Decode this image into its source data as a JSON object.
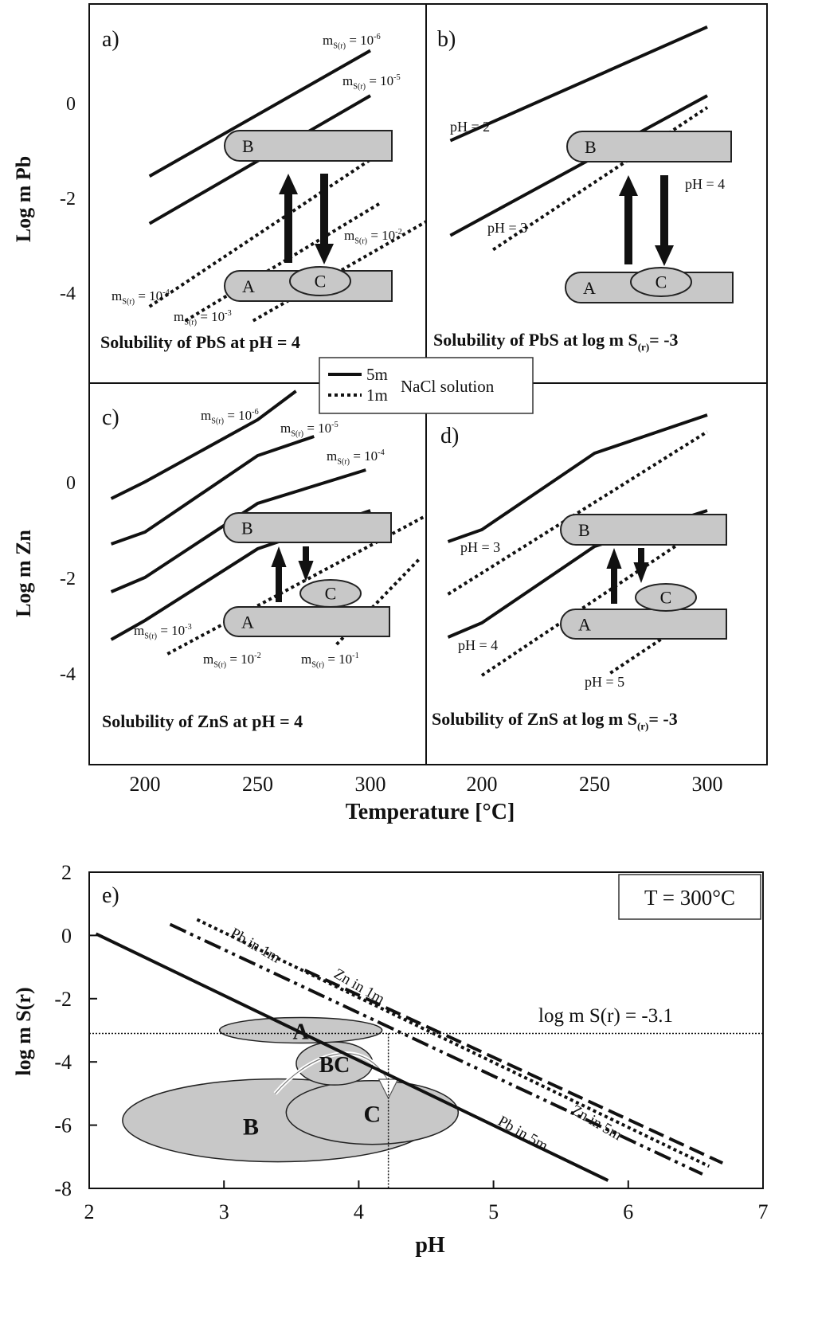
{
  "chart_data": [
    {
      "panel": "a)",
      "type": "line",
      "title": "Solubility of PbS at pH = 4",
      "ylabel": "Log m Pb",
      "xlim": [
        175,
        325
      ],
      "ylim": [
        -5.8,
        2
      ],
      "yticks": [
        "0",
        "-2",
        "-4"
      ],
      "series": [
        {
          "name": "m S(r) = 10-6",
          "style": "solid",
          "x": [
            202,
            300
          ],
          "y": [
            -1.55,
            1.1
          ]
        },
        {
          "name": "m S(r) = 10-5",
          "style": "solid",
          "x": [
            202,
            300
          ],
          "y": [
            -2.55,
            0.15
          ]
        },
        {
          "name": "m S(r) = 10-4",
          "style": "dotted",
          "x": [
            202,
            300
          ],
          "y": [
            -4.3,
            -1.2
          ]
        },
        {
          "name": "m S(r) = 10-3",
          "style": "dotted",
          "x": [
            218,
            305
          ],
          "y": [
            -4.6,
            -2.1
          ]
        },
        {
          "name": "m S(r) = 10-2",
          "style": "dotted",
          "x": [
            248,
            325
          ],
          "y": [
            -4.6,
            -2.5
          ]
        }
      ],
      "labels": [
        {
          "text": "m",
          "sub": "S(r)",
          "suffix": " = 10",
          "sup": "-6"
        },
        {
          "text": "m",
          "sub": "S(r)",
          "suffix": " = 10",
          "sup": "-5"
        },
        {
          "text": "m",
          "sub": "S(r)",
          "suffix": " = 10",
          "sup": "-4"
        },
        {
          "text": "m",
          "sub": "S(r)",
          "suffix": " = 10",
          "sup": "-3"
        },
        {
          "text": "m",
          "sub": "S(r)",
          "suffix": " = 10",
          "sup": "-2"
        }
      ]
    },
    {
      "panel": "b)",
      "type": "line",
      "title": "Solubility of PbS at log m S(r)= -3",
      "xlim": [
        175,
        325
      ],
      "ylim": [
        -5.8,
        2
      ],
      "series": [
        {
          "name": "pH = 2",
          "style": "solid",
          "x": [
            186,
            300
          ],
          "y": [
            -0.8,
            1.6
          ]
        },
        {
          "name": "pH = 3",
          "style": "solid",
          "x": [
            186,
            300
          ],
          "y": [
            -2.8,
            0.15
          ]
        },
        {
          "name": "pH = 4",
          "style": "dotted",
          "x": [
            205,
            300
          ],
          "y": [
            -3.1,
            -0.1
          ]
        }
      ],
      "labels": [
        "pH = 2",
        "pH = 3",
        "pH = 4"
      ]
    },
    {
      "panel": "c)",
      "type": "line",
      "title": "Solubility of ZnS at pH = 4",
      "ylabel": "Log m Zn",
      "xlim": [
        175,
        325
      ],
      "ylim": [
        -5.8,
        2
      ],
      "yticks": [
        "0",
        "-2",
        "-4"
      ],
      "series": [
        {
          "name": "m S(r) = 10-6",
          "style": "solid",
          "x": [
            185,
            200,
            250,
            267
          ],
          "y": [
            -0.35,
            0,
            1.3,
            1.9
          ]
        },
        {
          "name": "m S(r) = 10-5",
          "style": "solid",
          "x": [
            185,
            200,
            250,
            275
          ],
          "y": [
            -1.3,
            -1.05,
            0.55,
            0.95
          ]
        },
        {
          "name": "m S(r) = 10-4",
          "style": "solid",
          "x": [
            185,
            200,
            250,
            298
          ],
          "y": [
            -2.3,
            -2.0,
            -0.45,
            0.25
          ]
        },
        {
          "name": "m S(r) = 10-3",
          "style": "solid",
          "x": [
            185,
            200,
            250,
            300
          ],
          "y": [
            -3.3,
            -2.9,
            -1.4,
            -0.6
          ]
        },
        {
          "name": "m S(r) = 10-2",
          "style": "dotted",
          "x": [
            210,
            325
          ],
          "y": [
            -3.6,
            -0.7
          ]
        },
        {
          "name": "m S(r) = 10-1",
          "style": "dotted",
          "x": [
            285,
            322
          ],
          "y": [
            -3.4,
            -1.6
          ]
        }
      ],
      "labels": [
        {
          "text": "m",
          "sub": "S(r)",
          "suffix": " = 10",
          "sup": "-6"
        },
        {
          "text": "m",
          "sub": "S(r)",
          "suffix": " = 10",
          "sup": "-5"
        },
        {
          "text": "m",
          "sub": "S(r)",
          "suffix": " = 10",
          "sup": "-4"
        },
        {
          "text": "m",
          "sub": "S(r)",
          "suffix": " = 10",
          "sup": "-3"
        },
        {
          "text": "m",
          "sub": "S(r)",
          "suffix": " = 10",
          "sup": "-2"
        },
        {
          "text": "m",
          "sub": "S(r)",
          "suffix": " = 10",
          "sup": "-1"
        }
      ]
    },
    {
      "panel": "d)",
      "type": "line",
      "title": "Solubility of ZnS at log m S(r)= -3",
      "xlim": [
        175,
        325
      ],
      "ylim": [
        -5.8,
        2
      ],
      "series": [
        {
          "name": "pH = 3",
          "style": "solid",
          "x": [
            185,
            200,
            250,
            300
          ],
          "y": [
            -1.25,
            -1.0,
            0.6,
            1.4
          ]
        },
        {
          "name": "pH = 4",
          "style": "solid",
          "x": [
            185,
            200,
            250,
            300
          ],
          "y": [
            -3.25,
            -2.95,
            -1.35,
            -0.6
          ]
        },
        {
          "name": "pH = 3",
          "style": "dotted",
          "x": [
            185,
            300
          ],
          "y": [
            -2.35,
            1.05
          ]
        },
        {
          "name": "pH = 4",
          "style": "dotted",
          "x": [
            200,
            300
          ],
          "y": [
            -4.05,
            -0.9
          ]
        },
        {
          "name": "pH = 5",
          "style": "dotted",
          "x": [
            257,
            292
          ],
          "y": [
            -4.0,
            -2.9
          ]
        }
      ],
      "labels": [
        "pH = 3",
        "pH = 4",
        "pH = 5"
      ]
    },
    {
      "panel": "e)",
      "type": "line",
      "ylabel": "log m S(r)",
      "xlabel": "pH",
      "xlim": [
        2,
        7
      ],
      "ylim": [
        -8,
        2
      ],
      "xticks": [
        "2",
        "3",
        "4",
        "5",
        "6",
        "7"
      ],
      "yticks": [
        "2",
        "0",
        "-2",
        "-4",
        "-6",
        "-8"
      ],
      "reference_line": {
        "label": "log m S(r) = -3.1",
        "y": -3.1,
        "x_vertical": 4.22
      },
      "series": [
        {
          "name": "Pb in 5m",
          "style": "solid",
          "x": [
            2.05,
            5.85
          ],
          "y": [
            0.05,
            -7.75
          ]
        },
        {
          "name": "Zn in 5m",
          "style": "dash-dot-dot",
          "x": [
            2.6,
            6.55
          ],
          "y": [
            0.35,
            -7.55
          ]
        },
        {
          "name": "Pb in 1m",
          "style": "dotted",
          "x": [
            2.8,
            6.6
          ],
          "y": [
            0.5,
            -7.3
          ]
        },
        {
          "name": "Zn in 1m",
          "style": "dashed",
          "x": [
            3.6,
            6.7
          ],
          "y": [
            -1.1,
            -7.2
          ]
        }
      ],
      "labels": [
        "Pb in 1m",
        "Zn in 1m",
        "Pb in 5m",
        "Zn in 5m"
      ],
      "regions": [
        "A",
        "BC",
        "B",
        "C"
      ],
      "inset": "T = 300°C"
    }
  ],
  "shared": {
    "xlabel": "Temperature [°C]",
    "xticks": [
      "200",
      "250",
      "300"
    ],
    "legend": {
      "solid": "5m",
      "dotted": "1m",
      "suffix": "NaCl solution"
    },
    "region_labels": {
      "A": "A",
      "B": "B",
      "C": "C"
    }
  }
}
